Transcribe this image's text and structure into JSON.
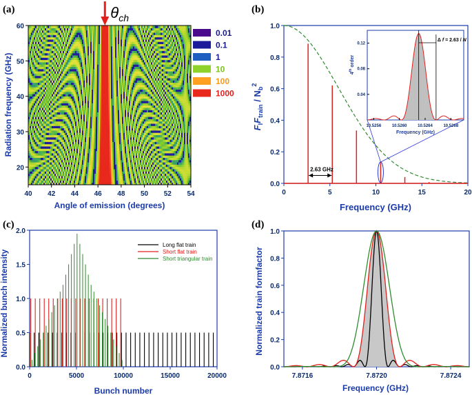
{
  "panel_labels": [
    "(a)",
    "(b)",
    "(c)",
    "(d)"
  ],
  "chart_data": [
    {
      "type": "heatmap",
      "panel": "(a)",
      "xlabel": "Angle of emission (degrees)",
      "ylabel": "Radiation frequency (GHz)",
      "xlim": [
        40,
        54
      ],
      "ylim": [
        15,
        60
      ],
      "xticks": [
        40,
        42,
        44,
        46,
        48,
        50,
        52,
        54
      ],
      "yticks": [
        20,
        30,
        40,
        50,
        60
      ],
      "annotation": "θch",
      "annotation_angle": 46.6,
      "legend": [
        {
          "label": "0.01",
          "color": "#4b0a8c"
        },
        {
          "label": "0.1",
          "color": "#1a1a9a"
        },
        {
          "label": "1",
          "color": "#1f5fbf"
        },
        {
          "label": "10",
          "color": "#8fd22a"
        },
        {
          "label": "100",
          "color": "#ffa020"
        },
        {
          "label": "1000",
          "color": "#e8281c"
        }
      ]
    },
    {
      "type": "bar",
      "panel": "(b)",
      "xlabel": "Frequency (GHz)",
      "ylabel": "F F_train / N_b^2",
      "ylabel_parts": [
        "F",
        "l",
        "F",
        "train",
        " / N",
        "b",
        "2"
      ],
      "xlim": [
        0,
        20
      ],
      "ylim": [
        0,
        1.0
      ],
      "xticks": [
        0,
        5,
        10,
        15,
        20
      ],
      "yticks": [
        0.0,
        0.2,
        0.4,
        0.6,
        0.8,
        1.0
      ],
      "harmonics_x": [
        2.63,
        5.26,
        7.89,
        10.52,
        13.15,
        15.78
      ],
      "harmonics_y": [
        0.885,
        0.62,
        0.335,
        0.135,
        0.04,
        0.008
      ],
      "envelope": "gaussian, 1.0 at 0, ~0.01 at 18",
      "annotation": "2.63 GHz",
      "inset": {
        "xlabel": "Frequency (GHz)",
        "ylabel": "4th order",
        "ylabel_parts": [
          "4",
          "th",
          " order"
        ],
        "xlim": [
          10.5255,
          10.527
        ],
        "ylim": [
          0,
          0.14
        ],
        "xticks": [
          "10.5256",
          "10.5260",
          "10.5264",
          "10.5268"
        ],
        "yticks": [
          "0.04",
          "0.08",
          "0.12"
        ],
        "peak_x": 10.5263,
        "peak_y": 0.135,
        "annotation": "Δ f = 2.63 / N",
        "annotation_parts": [
          "Δ ",
          "f",
          " = 2.63 / ",
          "N"
        ]
      }
    },
    {
      "type": "bar",
      "panel": "(c)",
      "xlabel": "Bunch number",
      "ylabel": "Normalized bunch intensity",
      "xlim": [
        0,
        20000
      ],
      "ylim": [
        0,
        2.0
      ],
      "xticks": [
        0,
        5000,
        10000,
        15000,
        20000
      ],
      "yticks": [
        0.0,
        0.5,
        1.0,
        1.5,
        2.0
      ],
      "series": [
        {
          "name": "Long flat train",
          "color": "#000000",
          "x_start": 0,
          "x_end": 19600,
          "count": 41,
          "value": 0.5
        },
        {
          "name": "Short flat train",
          "color": "#e0201c",
          "x_start": 0,
          "x_end": 9600,
          "count": 21,
          "value": 1.0
        },
        {
          "name": "Short triangular train",
          "color": "#2e8b2e",
          "peak_x": 5000,
          "peak_value": 1.95,
          "values": [
            0.1,
            0.2,
            0.3,
            0.4,
            0.5,
            0.6,
            0.7,
            0.8,
            0.9,
            1.0,
            1.1,
            1.2,
            1.35,
            1.5,
            1.65,
            1.8,
            1.95,
            1.8,
            1.65,
            1.5,
            1.35,
            1.2,
            1.1,
            1.0,
            0.9,
            0.8,
            0.7,
            0.6,
            0.5,
            0.4,
            0.3,
            0.2,
            0.1
          ]
        }
      ]
    },
    {
      "type": "line",
      "panel": "(d)",
      "xlabel": "Frequency (GHz)",
      "ylabel": "Normalized train formfactor",
      "xlim": [
        7.8715,
        7.8725
      ],
      "ylim": [
        0,
        1.0
      ],
      "xticks": [
        "7.8716",
        "7.8720",
        "7.8724"
      ],
      "yticks": [
        "0.0",
        "0.2",
        "0.4",
        "0.6",
        "0.8",
        "1.0"
      ],
      "center": 7.872,
      "series": [
        {
          "name": "Long flat train",
          "color": "#000000",
          "first_zero_offset": 6.25e-05
        },
        {
          "name": "Short flat train",
          "color": "#e0201c",
          "first_zero_offset": 0.000125,
          "fill": "#c8c8c8"
        },
        {
          "name": "Short triangular train",
          "color": "#2e8b2e",
          "first_zero_offset": 0.00025
        }
      ]
    }
  ]
}
